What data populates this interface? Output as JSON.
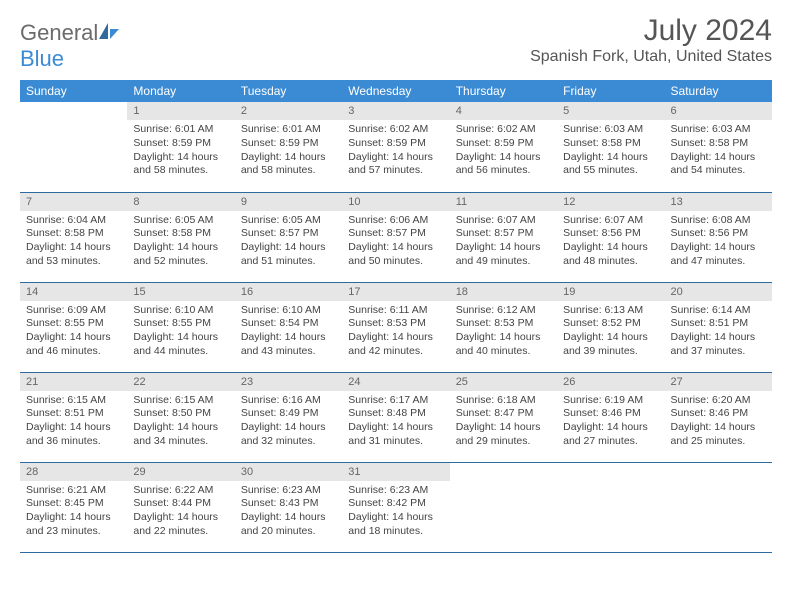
{
  "brand": {
    "name1": "General",
    "name2": "Blue"
  },
  "title": "July 2024",
  "location": "Spanish Fork, Utah, United States",
  "colors": {
    "header_bg": "#3b8bd4",
    "header_text": "#ffffff",
    "daynum_bg": "#e6e6e6",
    "row_border": "#2e6a9e",
    "body_text": "#444444",
    "title_text": "#555555",
    "logo_gray": "#6b6b6b"
  },
  "weekdays": [
    "Sunday",
    "Monday",
    "Tuesday",
    "Wednesday",
    "Thursday",
    "Friday",
    "Saturday"
  ],
  "weeks": [
    [
      null,
      {
        "n": "1",
        "sr": "6:01 AM",
        "ss": "8:59 PM",
        "dl": "14 hours and 58 minutes."
      },
      {
        "n": "2",
        "sr": "6:01 AM",
        "ss": "8:59 PM",
        "dl": "14 hours and 58 minutes."
      },
      {
        "n": "3",
        "sr": "6:02 AM",
        "ss": "8:59 PM",
        "dl": "14 hours and 57 minutes."
      },
      {
        "n": "4",
        "sr": "6:02 AM",
        "ss": "8:59 PM",
        "dl": "14 hours and 56 minutes."
      },
      {
        "n": "5",
        "sr": "6:03 AM",
        "ss": "8:58 PM",
        "dl": "14 hours and 55 minutes."
      },
      {
        "n": "6",
        "sr": "6:03 AM",
        "ss": "8:58 PM",
        "dl": "14 hours and 54 minutes."
      }
    ],
    [
      {
        "n": "7",
        "sr": "6:04 AM",
        "ss": "8:58 PM",
        "dl": "14 hours and 53 minutes."
      },
      {
        "n": "8",
        "sr": "6:05 AM",
        "ss": "8:58 PM",
        "dl": "14 hours and 52 minutes."
      },
      {
        "n": "9",
        "sr": "6:05 AM",
        "ss": "8:57 PM",
        "dl": "14 hours and 51 minutes."
      },
      {
        "n": "10",
        "sr": "6:06 AM",
        "ss": "8:57 PM",
        "dl": "14 hours and 50 minutes."
      },
      {
        "n": "11",
        "sr": "6:07 AM",
        "ss": "8:57 PM",
        "dl": "14 hours and 49 minutes."
      },
      {
        "n": "12",
        "sr": "6:07 AM",
        "ss": "8:56 PM",
        "dl": "14 hours and 48 minutes."
      },
      {
        "n": "13",
        "sr": "6:08 AM",
        "ss": "8:56 PM",
        "dl": "14 hours and 47 minutes."
      }
    ],
    [
      {
        "n": "14",
        "sr": "6:09 AM",
        "ss": "8:55 PM",
        "dl": "14 hours and 46 minutes."
      },
      {
        "n": "15",
        "sr": "6:10 AM",
        "ss": "8:55 PM",
        "dl": "14 hours and 44 minutes."
      },
      {
        "n": "16",
        "sr": "6:10 AM",
        "ss": "8:54 PM",
        "dl": "14 hours and 43 minutes."
      },
      {
        "n": "17",
        "sr": "6:11 AM",
        "ss": "8:53 PM",
        "dl": "14 hours and 42 minutes."
      },
      {
        "n": "18",
        "sr": "6:12 AM",
        "ss": "8:53 PM",
        "dl": "14 hours and 40 minutes."
      },
      {
        "n": "19",
        "sr": "6:13 AM",
        "ss": "8:52 PM",
        "dl": "14 hours and 39 minutes."
      },
      {
        "n": "20",
        "sr": "6:14 AM",
        "ss": "8:51 PM",
        "dl": "14 hours and 37 minutes."
      }
    ],
    [
      {
        "n": "21",
        "sr": "6:15 AM",
        "ss": "8:51 PM",
        "dl": "14 hours and 36 minutes."
      },
      {
        "n": "22",
        "sr": "6:15 AM",
        "ss": "8:50 PM",
        "dl": "14 hours and 34 minutes."
      },
      {
        "n": "23",
        "sr": "6:16 AM",
        "ss": "8:49 PM",
        "dl": "14 hours and 32 minutes."
      },
      {
        "n": "24",
        "sr": "6:17 AM",
        "ss": "8:48 PM",
        "dl": "14 hours and 31 minutes."
      },
      {
        "n": "25",
        "sr": "6:18 AM",
        "ss": "8:47 PM",
        "dl": "14 hours and 29 minutes."
      },
      {
        "n": "26",
        "sr": "6:19 AM",
        "ss": "8:46 PM",
        "dl": "14 hours and 27 minutes."
      },
      {
        "n": "27",
        "sr": "6:20 AM",
        "ss": "8:46 PM",
        "dl": "14 hours and 25 minutes."
      }
    ],
    [
      {
        "n": "28",
        "sr": "6:21 AM",
        "ss": "8:45 PM",
        "dl": "14 hours and 23 minutes."
      },
      {
        "n": "29",
        "sr": "6:22 AM",
        "ss": "8:44 PM",
        "dl": "14 hours and 22 minutes."
      },
      {
        "n": "30",
        "sr": "6:23 AM",
        "ss": "8:43 PM",
        "dl": "14 hours and 20 minutes."
      },
      {
        "n": "31",
        "sr": "6:23 AM",
        "ss": "8:42 PM",
        "dl": "14 hours and 18 minutes."
      },
      null,
      null,
      null
    ]
  ],
  "labels": {
    "sunrise": "Sunrise:",
    "sunset": "Sunset:",
    "daylight": "Daylight:"
  }
}
